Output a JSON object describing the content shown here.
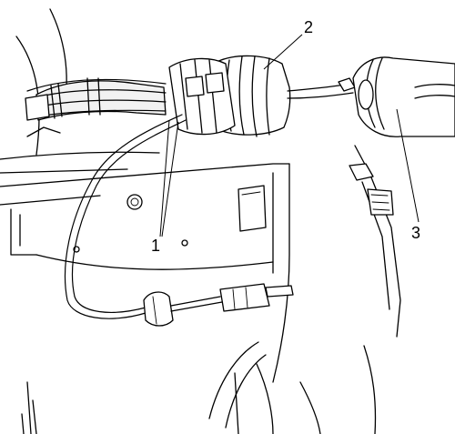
{
  "callouts": {
    "c1": "1",
    "c2": "2",
    "c3": "3"
  }
}
